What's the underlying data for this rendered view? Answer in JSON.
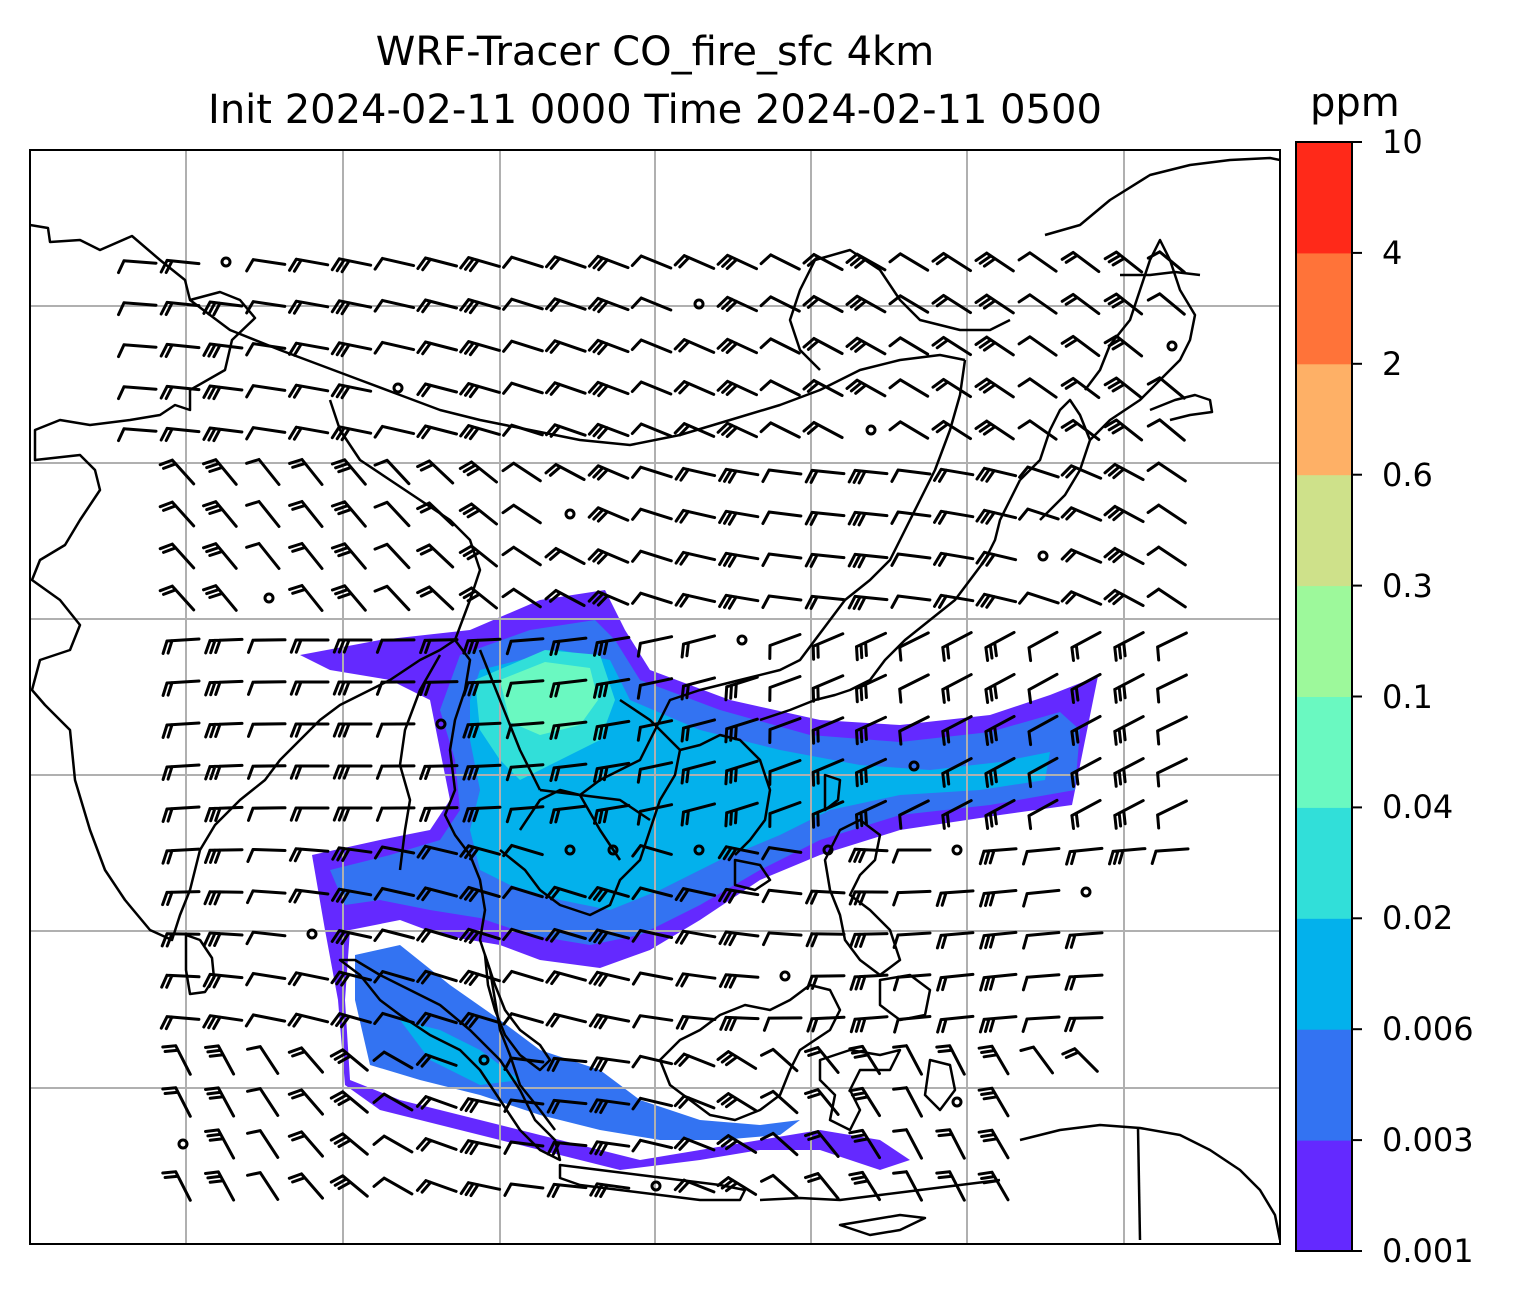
{
  "title": {
    "line1": "WRF-Tracer CO_fire_sfc 4km",
    "line2": "Init 2024-02-11 0000 Time 2024-02-11 0500"
  },
  "colorbar": {
    "unit": "ppm",
    "ticks": [
      "0.001",
      "0.003",
      "0.006",
      "0.02",
      "0.04",
      "0.1",
      "0.3",
      "0.6",
      "2",
      "4",
      "10"
    ],
    "colors": [
      "#6429ff",
      "#3373f2",
      "#03b1ec",
      "#31dfd9",
      "#6af9c1",
      "#9df99b",
      "#cee18a",
      "#feb066",
      "#ff7339",
      "#ff2919"
    ]
  },
  "map": {
    "field_colors": {
      "outer": "#6429ff",
      "mid": "#3373f2",
      "inner": "#03b1ec",
      "core": "#31dfd9",
      "peak": "#6af9c1"
    },
    "gridline_color": "#b0b0b0",
    "coastline_color": "#000000",
    "barb_color": "#000000"
  }
}
